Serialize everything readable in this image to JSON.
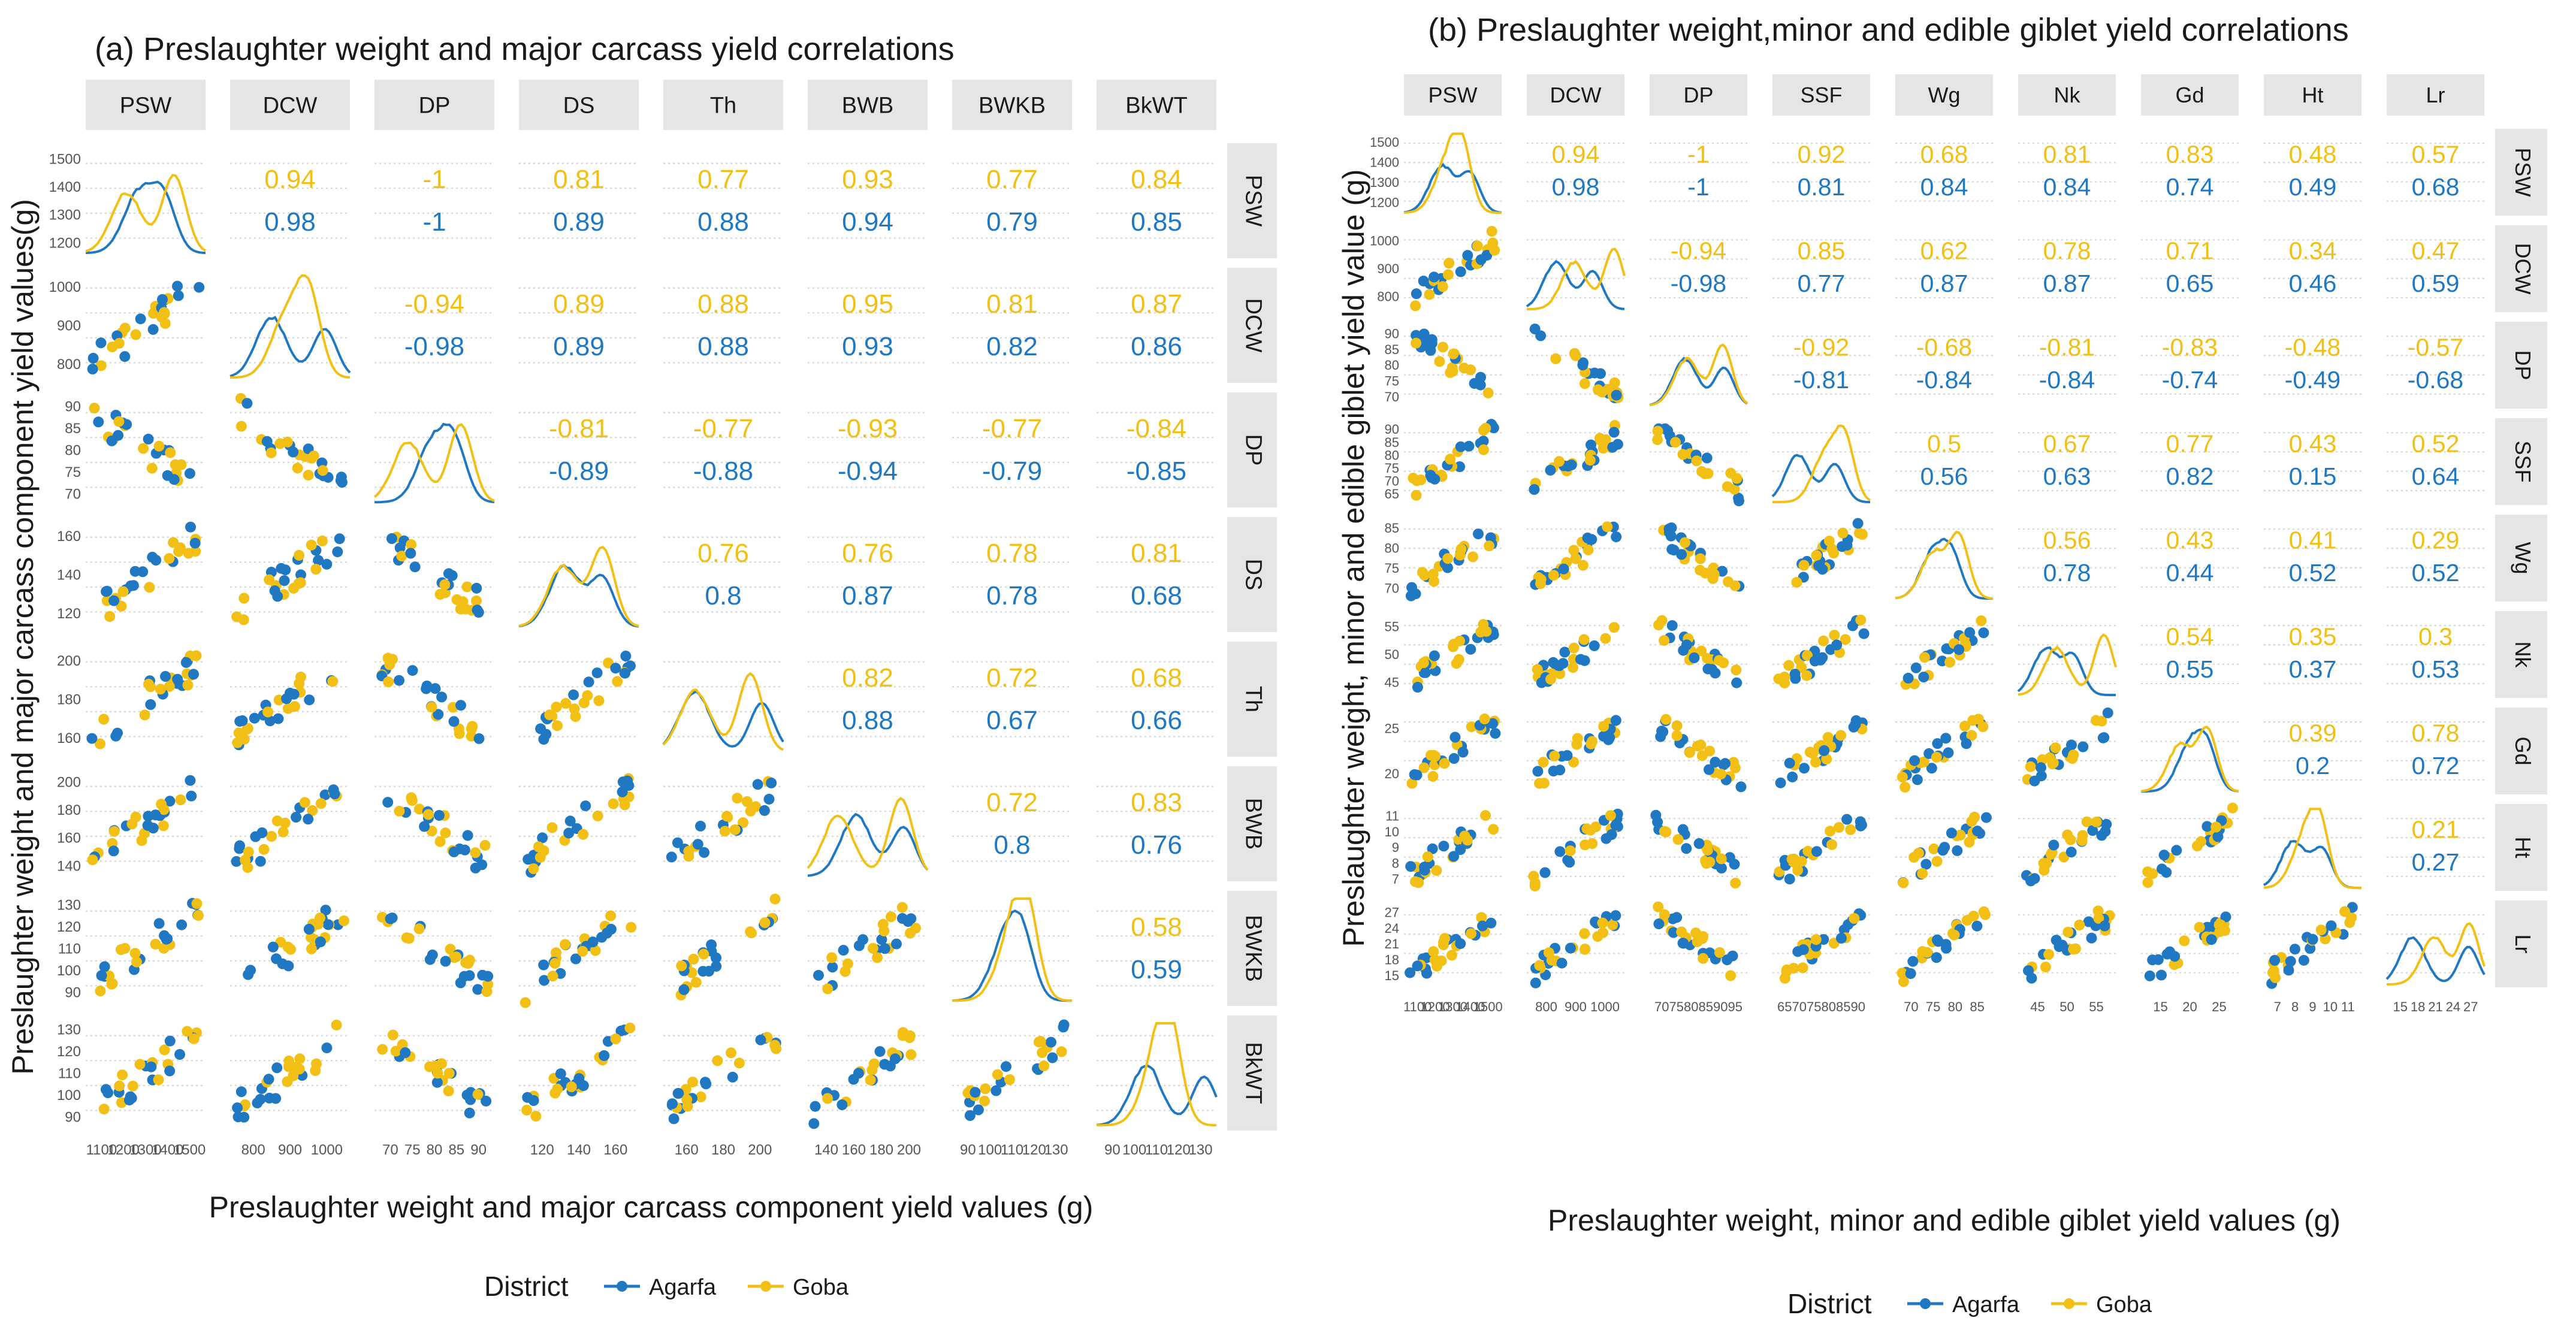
{
  "colors": {
    "agarfa": "#1f78c1",
    "goba": "#f2c014",
    "strip": "#e5e5e5",
    "grid": "#d2d2d2",
    "text": "#1a1a1a",
    "tick": "#555555"
  },
  "charts": [
    {
      "id": "a",
      "title": "(a) Preslaughter weight and major carcass yield correlations",
      "xlabel": "Preslaughter weight and major carcass component yield values (g)",
      "ylabel": "Preslaughter weight and major carcass component yield values(g)",
      "vars": [
        "PSW",
        "DCW",
        "DP",
        "DS",
        "Th",
        "BWB",
        "BWKB",
        "BkWT"
      ],
      "x_ticks": [
        [
          "1100",
          "1200",
          "1300",
          "1400",
          "1500"
        ],
        [
          "800",
          "900",
          "1000"
        ],
        [
          "70",
          "75",
          "80",
          "85",
          "90"
        ],
        [
          "120",
          "140",
          "160"
        ],
        [
          "160",
          "180",
          "200"
        ],
        [
          "140",
          "160",
          "180",
          "200"
        ],
        [
          "90",
          "100",
          "110",
          "120",
          "130"
        ],
        [
          "90",
          "100",
          "110",
          "120",
          "130"
        ]
      ],
      "y_ticks": [
        [
          "1200",
          "1300",
          "1400",
          "1500"
        ],
        [
          "800",
          "900",
          "1000"
        ],
        [
          "70",
          "75",
          "80",
          "85",
          "90"
        ],
        [
          "120",
          "140",
          "160"
        ],
        [
          "160",
          "180",
          "200"
        ],
        [
          "140",
          "160",
          "180",
          "200"
        ],
        [
          "90",
          "100",
          "110",
          "120",
          "130"
        ],
        [
          "90",
          "100",
          "110",
          "120",
          "130"
        ]
      ],
      "cor_goba": [
        [
          null,
          "0.94",
          "-1",
          "0.81",
          "0.77",
          "0.93",
          "0.77",
          "0.84"
        ],
        [
          null,
          null,
          "-0.94",
          "0.89",
          "0.88",
          "0.95",
          "0.81",
          "0.87"
        ],
        [
          null,
          null,
          null,
          "-0.81",
          "-0.77",
          "-0.93",
          "-0.77",
          "-0.84"
        ],
        [
          null,
          null,
          null,
          null,
          "0.76",
          "0.76",
          "0.78",
          "0.81"
        ],
        [
          null,
          null,
          null,
          null,
          null,
          "0.82",
          "0.72",
          "0.68"
        ],
        [
          null,
          null,
          null,
          null,
          null,
          null,
          "0.72",
          "0.83"
        ],
        [
          null,
          null,
          null,
          null,
          null,
          null,
          null,
          "0.58"
        ]
      ],
      "cor_agarfa": [
        [
          null,
          "0.98",
          "-1",
          "0.89",
          "0.88",
          "0.94",
          "0.79",
          "0.85"
        ],
        [
          null,
          null,
          "-0.98",
          "0.89",
          "0.88",
          "0.93",
          "0.82",
          "0.86"
        ],
        [
          null,
          null,
          null,
          "-0.89",
          "-0.88",
          "-0.94",
          "-0.79",
          "-0.85"
        ],
        [
          null,
          null,
          null,
          null,
          "0.8",
          "0.87",
          "0.78",
          "0.68"
        ],
        [
          null,
          null,
          null,
          null,
          null,
          "0.88",
          "0.67",
          "0.66"
        ],
        [
          null,
          null,
          null,
          null,
          null,
          null,
          "0.8",
          "0.76"
        ],
        [
          null,
          null,
          null,
          null,
          null,
          null,
          null,
          "0.59"
        ]
      ],
      "legend": {
        "title": "District",
        "agarfa": "Agarfa",
        "goba": "Goba"
      }
    },
    {
      "id": "b",
      "title": "(b) Preslaughter weight,minor and edible giblet yield correlations",
      "xlabel": "Preslaughter weight, minor and edible giblet yield values (g)",
      "ylabel": "Preslaughter weight, minor and edible giblet yield value (g)",
      "vars": [
        "PSW",
        "DCW",
        "DP",
        "SSF",
        "Wg",
        "Nk",
        "Gd",
        "Ht",
        "Lr"
      ],
      "x_ticks": [
        [
          "1100",
          "1200",
          "1300",
          "1400",
          "1500"
        ],
        [
          "800",
          "900",
          "1000"
        ],
        [
          "70",
          "75",
          "80",
          "85",
          "90",
          "95"
        ],
        [
          "65",
          "70",
          "75",
          "80",
          "85",
          "90"
        ],
        [
          "70",
          "75",
          "80",
          "85"
        ],
        [
          "45",
          "50",
          "55"
        ],
        [
          "15",
          "20",
          "25"
        ],
        [
          "7",
          "8",
          "9",
          "10",
          "11"
        ],
        [
          "15",
          "18",
          "21",
          "24",
          "27"
        ]
      ],
      "y_ticks": [
        [
          "1200",
          "1300",
          "1400",
          "1500"
        ],
        [
          "800",
          "900",
          "1000"
        ],
        [
          "70",
          "75",
          "80",
          "85",
          "90"
        ],
        [
          "65",
          "70",
          "75",
          "80",
          "85",
          "90"
        ],
        [
          "70",
          "75",
          "80",
          "85"
        ],
        [
          "45",
          "50",
          "55"
        ],
        [
          "20",
          "25"
        ],
        [
          "7",
          "8",
          "9",
          "10",
          "11"
        ],
        [
          "15",
          "18",
          "21",
          "24",
          "27"
        ]
      ],
      "cor_goba": [
        [
          null,
          "0.94",
          "-1",
          "0.92",
          "0.68",
          "0.81",
          "0.83",
          "0.48",
          "0.57"
        ],
        [
          null,
          null,
          "-0.94",
          "0.85",
          "0.62",
          "0.78",
          "0.71",
          "0.34",
          "0.47"
        ],
        [
          null,
          null,
          null,
          "-0.92",
          "-0.68",
          "-0.81",
          "-0.83",
          "-0.48",
          "-0.57"
        ],
        [
          null,
          null,
          null,
          null,
          "0.5",
          "0.67",
          "0.77",
          "0.43",
          "0.52"
        ],
        [
          null,
          null,
          null,
          null,
          null,
          "0.56",
          "0.43",
          "0.41",
          "0.29"
        ],
        [
          null,
          null,
          null,
          null,
          null,
          null,
          "0.54",
          "0.35",
          "0.3"
        ],
        [
          null,
          null,
          null,
          null,
          null,
          null,
          null,
          "0.39",
          "0.78"
        ],
        [
          null,
          null,
          null,
          null,
          null,
          null,
          null,
          null,
          "0.21"
        ]
      ],
      "cor_agarfa": [
        [
          null,
          "0.98",
          "-1",
          "0.81",
          "0.84",
          "0.84",
          "0.74",
          "0.49",
          "0.68"
        ],
        [
          null,
          null,
          "-0.98",
          "0.77",
          "0.87",
          "0.87",
          "0.65",
          "0.46",
          "0.59"
        ],
        [
          null,
          null,
          null,
          "-0.81",
          "-0.84",
          "-0.84",
          "-0.74",
          "-0.49",
          "-0.68"
        ],
        [
          null,
          null,
          null,
          null,
          "0.56",
          "0.63",
          "0.82",
          "0.15",
          "0.64"
        ],
        [
          null,
          null,
          null,
          null,
          null,
          "0.78",
          "0.44",
          "0.52",
          "0.52"
        ],
        [
          null,
          null,
          null,
          null,
          null,
          null,
          "0.55",
          "0.37",
          "0.53"
        ],
        [
          null,
          null,
          null,
          null,
          null,
          null,
          null,
          "0.2",
          "0.72"
        ],
        [
          null,
          null,
          null,
          null,
          null,
          null,
          null,
          null,
          "0.27"
        ]
      ],
      "legend": {
        "title": "District",
        "agarfa": "Agarfa",
        "goba": "Goba"
      }
    }
  ],
  "chart_data": [
    {
      "type": "scatter",
      "title": "(a) Preslaughter weight and major carcass yield correlations",
      "xlabel": "Preslaughter weight and major carcass component yield values (g)",
      "ylabel": "Preslaughter weight and major carcass component yield values(g)",
      "variables": [
        "PSW",
        "DCW",
        "DP",
        "DS",
        "Th",
        "BWB",
        "BWKB",
        "BkWT"
      ],
      "series": [
        {
          "name": "Agarfa"
        },
        {
          "name": "Goba"
        }
      ],
      "panel_types": {
        "diagonal": "density",
        "lower": "scatter",
        "upper": "correlation"
      }
    },
    {
      "type": "scatter",
      "title": "(b) Preslaughter weight,minor and edible giblet yield correlations",
      "xlabel": "Preslaughter weight, minor and edible giblet yield values (g)",
      "ylabel": "Preslaughter weight, minor and edible giblet yield value (g)",
      "variables": [
        "PSW",
        "DCW",
        "DP",
        "SSF",
        "Wg",
        "Nk",
        "Gd",
        "Ht",
        "Lr"
      ],
      "series": [
        {
          "name": "Agarfa"
        },
        {
          "name": "Goba"
        }
      ],
      "panel_types": {
        "diagonal": "density",
        "lower": "scatter",
        "upper": "correlation"
      }
    }
  ]
}
